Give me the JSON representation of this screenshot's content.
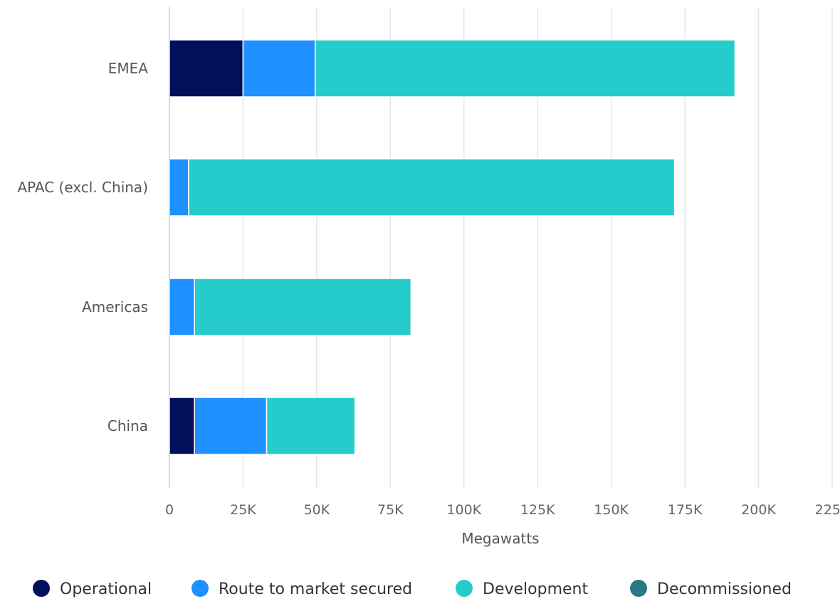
{
  "chart_data": {
    "type": "bar",
    "orientation": "horizontal",
    "stacked": true,
    "categories": [
      "EMEA",
      "APAC (excl. China)",
      "Americas",
      "China"
    ],
    "series": [
      {
        "name": "Operational",
        "color": "#020f59",
        "values": [
          25000,
          0,
          0,
          8500
        ]
      },
      {
        "name": "Route to market secured",
        "color": "#1e90ff",
        "values": [
          24500,
          6500,
          8500,
          24500
        ]
      },
      {
        "name": "Development",
        "color": "#26cbcb",
        "values": [
          142500,
          165000,
          73500,
          30000
        ]
      },
      {
        "name": "Decommissioned",
        "color": "#297a84",
        "values": [
          0,
          0,
          0,
          0
        ]
      }
    ],
    "xlabel": "Megawatts",
    "xlim": [
      0,
      225000
    ],
    "ticks": [
      {
        "value": 0,
        "label": "0"
      },
      {
        "value": 25000,
        "label": "25K"
      },
      {
        "value": 50000,
        "label": "50K"
      },
      {
        "value": 75000,
        "label": "75K"
      },
      {
        "value": 100000,
        "label": "100K"
      },
      {
        "value": 125000,
        "label": "125K"
      },
      {
        "value": 150000,
        "label": "150K"
      },
      {
        "value": 175000,
        "label": "175K"
      },
      {
        "value": 200000,
        "label": "200K"
      },
      {
        "value": 225000,
        "label": "225K"
      }
    ],
    "grid": true,
    "legend_position": "bottom"
  }
}
